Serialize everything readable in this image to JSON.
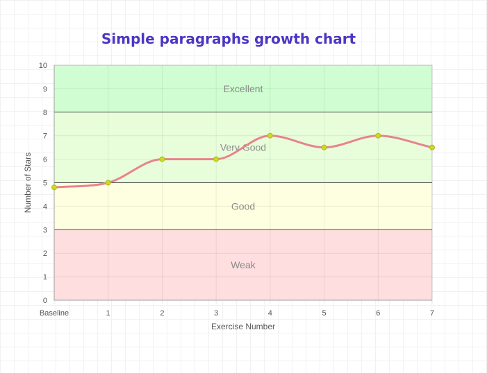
{
  "chart_data": {
    "type": "line",
    "title": "Simple paragraphs growth chart",
    "xlabel": "Exercise Number",
    "ylabel": "Number of Stars",
    "categories": [
      "Baseline",
      "1",
      "2",
      "3",
      "4",
      "5",
      "6",
      "7"
    ],
    "series": [
      {
        "values": [
          4.8,
          5,
          6,
          6,
          7,
          6.5,
          7,
          6.5
        ]
      }
    ],
    "ylim": [
      0,
      10
    ],
    "yticks": [
      "0",
      "1",
      "2",
      "3",
      "4",
      "5",
      "6",
      "7",
      "8",
      "9",
      "10"
    ],
    "grid": true,
    "bands": [
      {
        "label": "Weak",
        "from": 0,
        "to": 3,
        "color": "#ffdedf"
      },
      {
        "label": "Good",
        "from": 3,
        "to": 5,
        "color": "#fefee0"
      },
      {
        "label": "Very Good",
        "from": 5,
        "to": 8,
        "color": "#e8fedb"
      },
      {
        "label": "Excellent",
        "from": 8,
        "to": 10,
        "color": "#d0fed2"
      }
    ],
    "line_color": "#e8838d",
    "point_color": "#c9db25"
  }
}
